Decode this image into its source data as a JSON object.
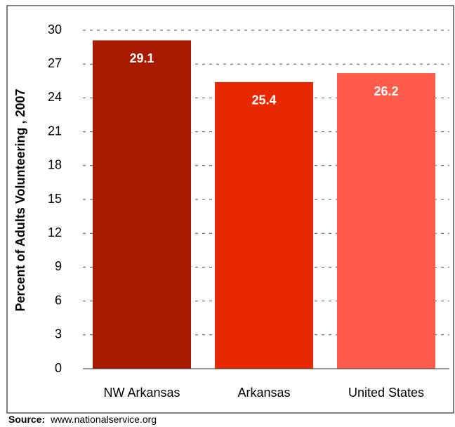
{
  "chart_data": {
    "type": "bar",
    "y_label": "Percent of Adults Volunteering , 2007",
    "categories": [
      "NW Arkansas",
      "Arkansas",
      "United States"
    ],
    "values": [
      29.1,
      25.4,
      26.2
    ],
    "colors": [
      "#a81a00",
      "#e82800",
      "#ff5a4a"
    ],
    "ylim": [
      0,
      30
    ],
    "yticks": [
      0,
      3,
      6,
      9,
      12,
      15,
      18,
      21,
      24,
      27,
      30
    ],
    "grid": true
  },
  "footer": {
    "source_label": "Source:",
    "source": "www.nationalservice.org"
  }
}
